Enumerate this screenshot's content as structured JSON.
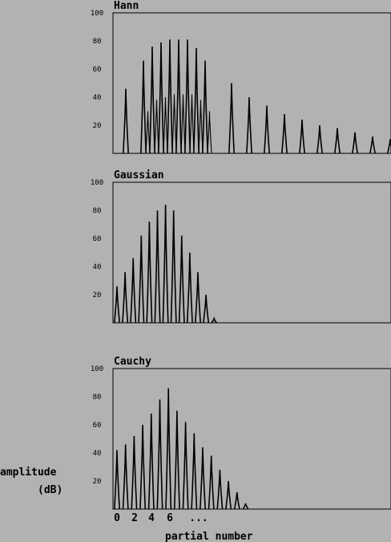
{
  "figure": {
    "ylabel_line1": "amplitude",
    "ylabel_line2": "(dB)",
    "xlabel": "partial number",
    "x_tick_labels": [
      "0",
      "2",
      "4",
      "6",
      "..."
    ],
    "background_color": "#b2b2b2",
    "line_color": "#000000"
  },
  "chart_data": [
    {
      "type": "line",
      "title": "Hann",
      "ylim": [
        0,
        100
      ],
      "yticks": [
        20,
        40,
        60,
        80,
        100
      ],
      "grid": false,
      "series": [
        {
          "x": [
            0,
            1,
            2,
            3,
            4,
            5,
            6,
            7,
            8,
            9,
            10,
            12,
            14,
            16,
            18,
            20,
            22,
            24,
            26,
            28,
            30
          ],
          "values": [
            46,
            0,
            66,
            76,
            79,
            81,
            81,
            81,
            75,
            66,
            0,
            50,
            40,
            34,
            28,
            24,
            20,
            18,
            15,
            12,
            10
          ]
        }
      ],
      "secondary_values": [
        null,
        null,
        30,
        38,
        40,
        42,
        42,
        42,
        38,
        30,
        null,
        null,
        null,
        null,
        null,
        null,
        null,
        null,
        null,
        null,
        null
      ]
    },
    {
      "type": "line",
      "title": "Gaussian",
      "ylim": [
        0,
        100
      ],
      "yticks": [
        20,
        40,
        60,
        80,
        100
      ],
      "grid": false,
      "series": [
        {
          "x": [
            0,
            1,
            2,
            3,
            4,
            5,
            6,
            7,
            8,
            9,
            10,
            11,
            12,
            13
          ],
          "values": [
            26,
            36,
            46,
            62,
            72,
            80,
            84,
            80,
            62,
            50,
            36,
            20,
            3,
            0
          ]
        }
      ]
    },
    {
      "type": "line",
      "title": "Cauchy",
      "ylim": [
        0,
        100
      ],
      "yticks": [
        20,
        40,
        60,
        80,
        100
      ],
      "grid": false,
      "series": [
        {
          "x": [
            0,
            1,
            2,
            3,
            4,
            5,
            6,
            7,
            8,
            9,
            10,
            11,
            12,
            13,
            14,
            15,
            16
          ],
          "values": [
            42,
            46,
            52,
            60,
            68,
            78,
            86,
            70,
            62,
            54,
            44,
            38,
            28,
            20,
            12,
            4,
            0
          ]
        }
      ]
    }
  ]
}
